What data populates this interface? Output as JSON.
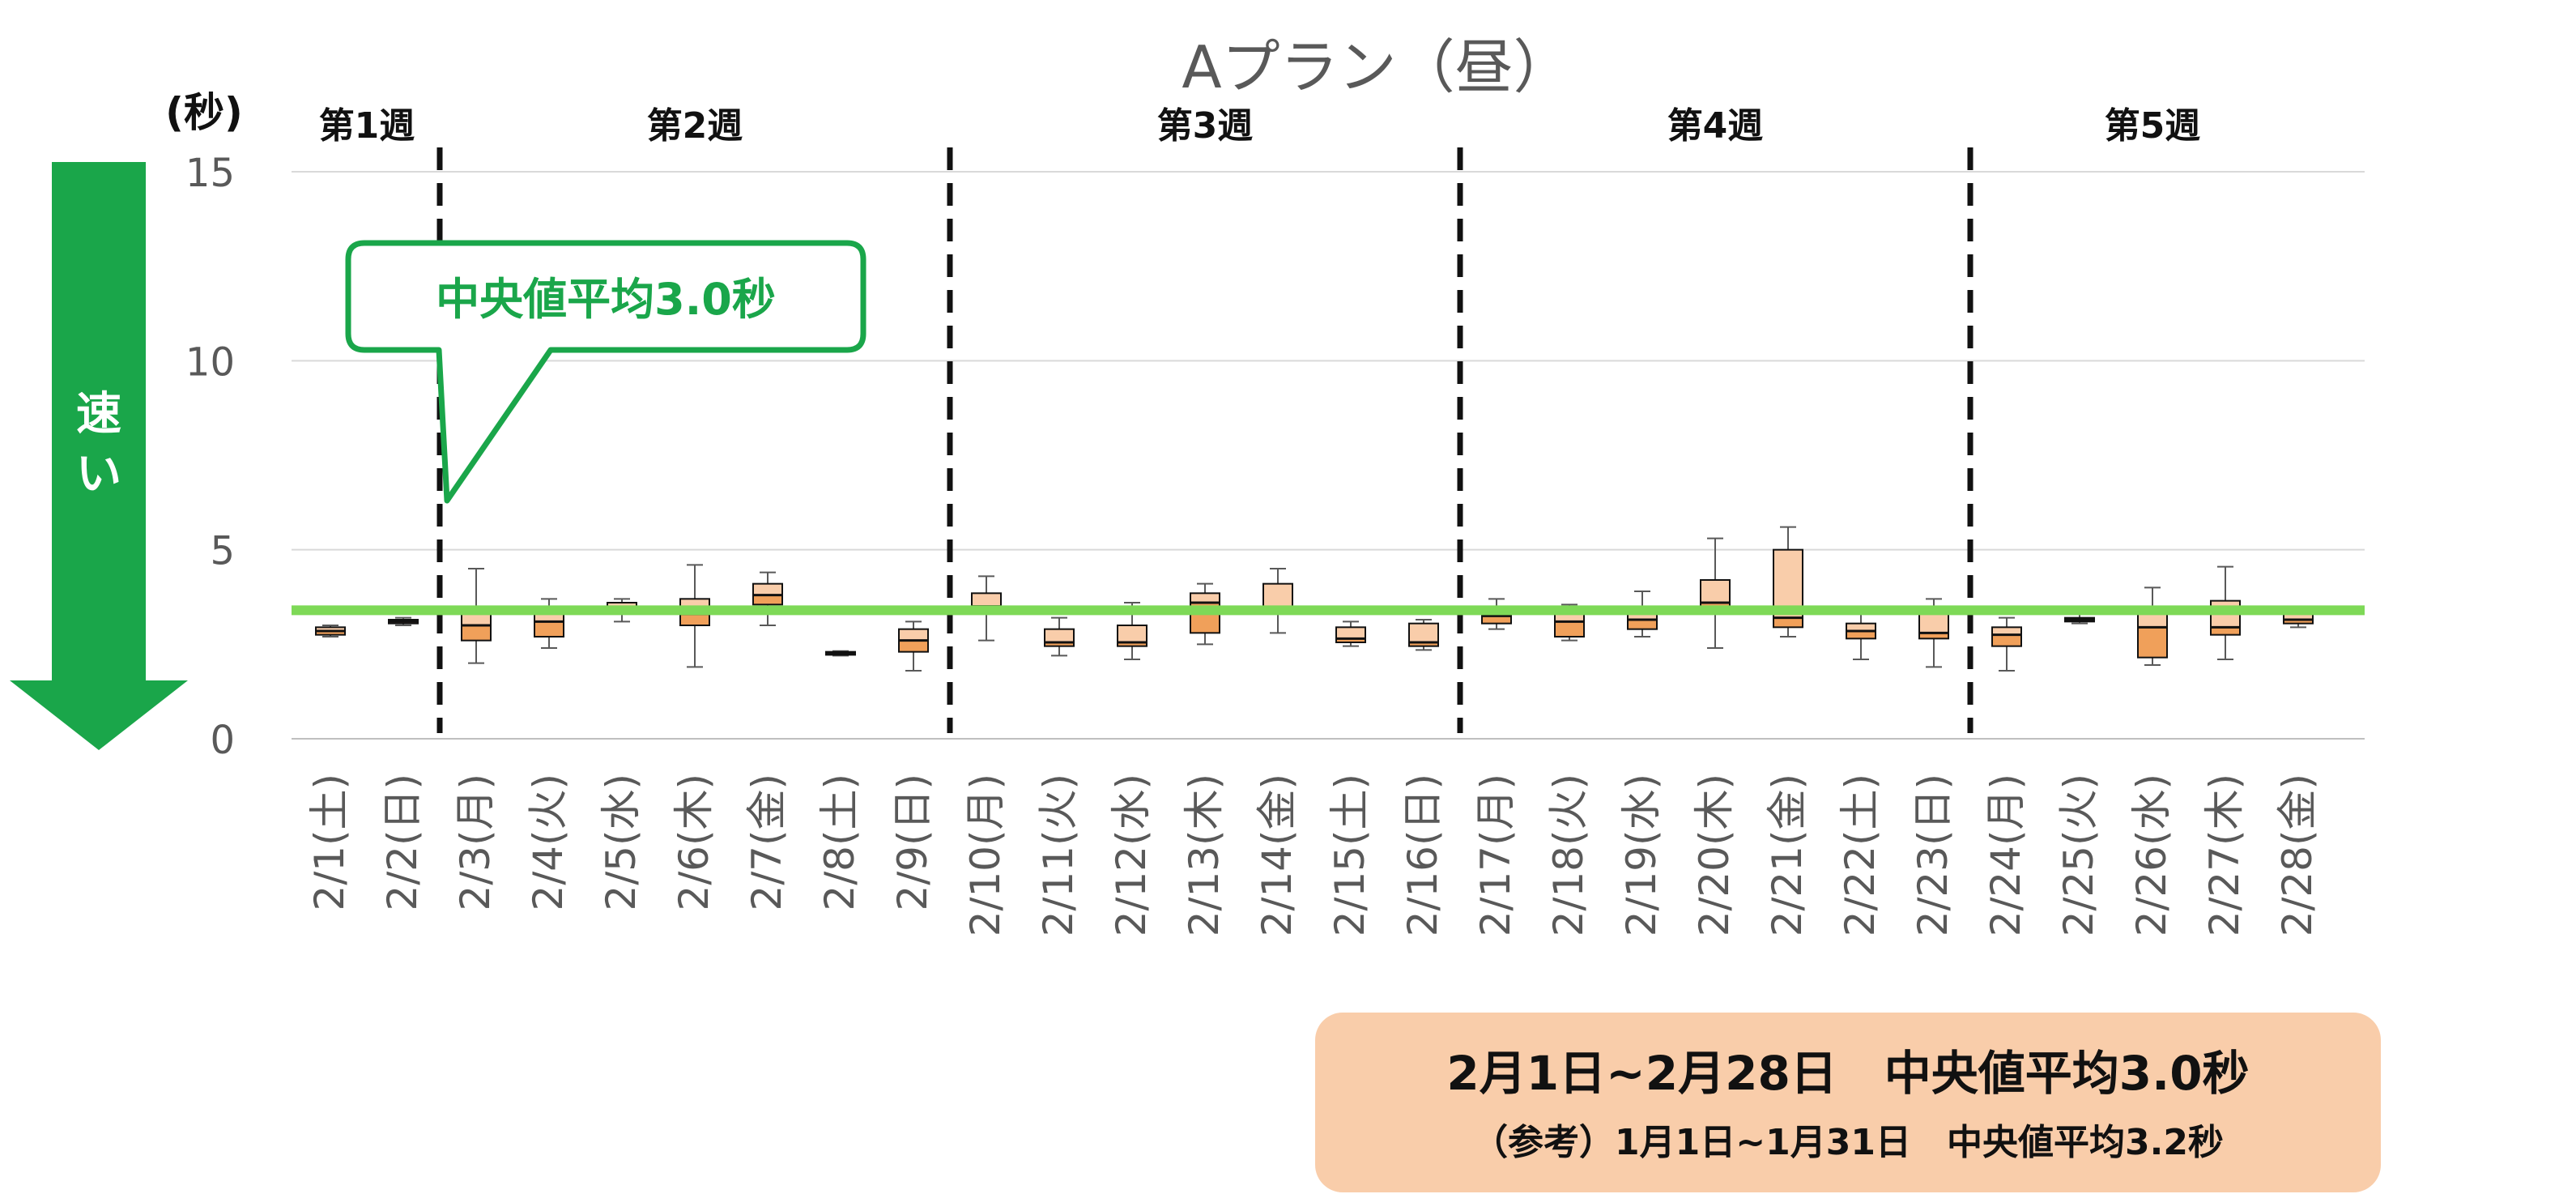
{
  "colors": {
    "accent_green": "#1aa64a",
    "reference_line": "#7ed957",
    "box_lower": "#f0a05a",
    "box_upper": "#f9cdaa",
    "summary_bg": "#f9cdaa"
  },
  "unit_label": "(秒)",
  "arrow": {
    "label": "速い",
    "icon": "down-arrow-icon"
  },
  "callout": {
    "text": "中央値平均3.0秒"
  },
  "weeks": [
    {
      "label": "第1週",
      "start": 0,
      "end": 1
    },
    {
      "label": "第2週",
      "start": 2,
      "end": 8
    },
    {
      "label": "第3週",
      "start": 9,
      "end": 15
    },
    {
      "label": "第4週",
      "start": 16,
      "end": 22
    },
    {
      "label": "第5週",
      "start": 23,
      "end": 27
    }
  ],
  "summary": {
    "line1": "2月1日~2月28日　中央値平均3.0秒",
    "line2": "（参考）1月1日~1月31日　中央値平均3.2秒"
  },
  "chart_data": {
    "type": "box",
    "title": "Aプラン（昼）",
    "ylabel": "(秒)",
    "xlabel": "",
    "ylim": [
      0,
      15
    ],
    "yticks": [
      0,
      5,
      10,
      15
    ],
    "grid": true,
    "reference_line": {
      "value": 3.4
    },
    "categories": [
      "2/1(土)",
      "2/2(日)",
      "2/3(月)",
      "2/4(火)",
      "2/5(水)",
      "2/6(木)",
      "2/7(金)",
      "2/8(土)",
      "2/9(日)",
      "2/10(月)",
      "2/11(火)",
      "2/12(水)",
      "2/13(木)",
      "2/14(金)",
      "2/15(土)",
      "2/16(日)",
      "2/17(月)",
      "2/18(火)",
      "2/19(水)",
      "2/20(木)",
      "2/21(金)",
      "2/22(土)",
      "2/23(日)",
      "2/24(月)",
      "2/25(火)",
      "2/26(水)",
      "2/27(木)",
      "2/28(金)"
    ],
    "boxes": [
      {
        "min": 2.7,
        "q1": 2.75,
        "median": 2.85,
        "q3": 2.95,
        "max": 3.0
      },
      {
        "min": 3.0,
        "q1": 3.05,
        "median": 3.1,
        "q3": 3.15,
        "max": 3.2
      },
      {
        "min": 2.0,
        "q1": 2.6,
        "median": 3.0,
        "q3": 3.5,
        "max": 4.5
      },
      {
        "min": 2.4,
        "q1": 2.7,
        "median": 3.1,
        "q3": 3.4,
        "max": 3.7
      },
      {
        "min": 3.1,
        "q1": 3.3,
        "median": 3.45,
        "q3": 3.6,
        "max": 3.7
      },
      {
        "min": 1.9,
        "q1": 3.0,
        "median": 3.3,
        "q3": 3.7,
        "max": 4.6
      },
      {
        "min": 3.0,
        "q1": 3.55,
        "median": 3.8,
        "q3": 4.1,
        "max": 4.4
      },
      {
        "min": 2.2,
        "q1": 2.22,
        "median": 2.27,
        "q3": 2.3,
        "max": 2.32
      },
      {
        "min": 1.8,
        "q1": 2.3,
        "median": 2.6,
        "q3": 2.9,
        "max": 3.1
      },
      {
        "min": 2.6,
        "q1": 3.3,
        "median": 3.5,
        "q3": 3.85,
        "max": 4.3
      },
      {
        "min": 2.2,
        "q1": 2.45,
        "median": 2.55,
        "q3": 2.9,
        "max": 3.2
      },
      {
        "min": 2.1,
        "q1": 2.45,
        "median": 2.55,
        "q3": 3.0,
        "max": 3.6
      },
      {
        "min": 2.5,
        "q1": 2.8,
        "median": 3.6,
        "q3": 3.85,
        "max": 4.1
      },
      {
        "min": 2.8,
        "q1": 3.4,
        "median": 3.45,
        "q3": 4.1,
        "max": 4.5
      },
      {
        "min": 2.45,
        "q1": 2.55,
        "median": 2.65,
        "q3": 2.95,
        "max": 3.1
      },
      {
        "min": 2.35,
        "q1": 2.45,
        "median": 2.55,
        "q3": 3.05,
        "max": 3.15
      },
      {
        "min": 2.9,
        "q1": 3.05,
        "median": 3.25,
        "q3": 3.5,
        "max": 3.7
      },
      {
        "min": 2.6,
        "q1": 2.7,
        "median": 3.1,
        "q3": 3.45,
        "max": 3.55
      },
      {
        "min": 2.7,
        "q1": 2.9,
        "median": 3.15,
        "q3": 3.5,
        "max": 3.9
      },
      {
        "min": 2.4,
        "q1": 3.3,
        "median": 3.6,
        "q3": 4.2,
        "max": 5.3
      },
      {
        "min": 2.7,
        "q1": 2.95,
        "median": 3.2,
        "q3": 5.0,
        "max": 5.6
      },
      {
        "min": 2.1,
        "q1": 2.65,
        "median": 2.85,
        "q3": 3.05,
        "max": 3.5
      },
      {
        "min": 1.9,
        "q1": 2.65,
        "median": 2.8,
        "q3": 3.4,
        "max": 3.7
      },
      {
        "min": 1.8,
        "q1": 2.45,
        "median": 2.75,
        "q3": 2.95,
        "max": 3.2
      },
      {
        "min": 3.05,
        "q1": 3.1,
        "median": 3.15,
        "q3": 3.2,
        "max": 3.3
      },
      {
        "min": 1.95,
        "q1": 2.15,
        "median": 2.95,
        "q3": 3.4,
        "max": 4.0
      },
      {
        "min": 2.1,
        "q1": 2.75,
        "median": 2.95,
        "q3": 3.65,
        "max": 4.55
      },
      {
        "min": 2.95,
        "q1": 3.05,
        "median": 3.15,
        "q3": 3.3,
        "max": 3.35
      }
    ]
  }
}
